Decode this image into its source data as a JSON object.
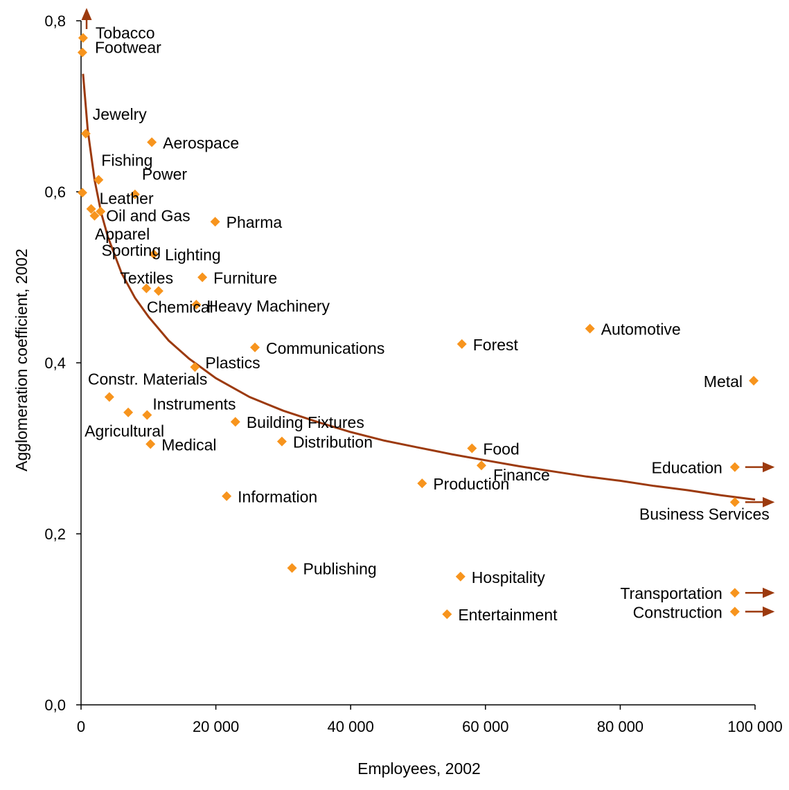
{
  "chart_data": {
    "type": "scatter",
    "xlabel": "Employees, 2002",
    "ylabel": "Agglomeration coefficient, 2002",
    "xlim": [
      0,
      100000
    ],
    "ylim": [
      0,
      0.8
    ],
    "x_ticks": [
      0,
      20000,
      40000,
      60000,
      80000,
      100000
    ],
    "x_tick_labels": [
      "0",
      "20 000",
      "40 000",
      "60 000",
      "80 000",
      "100 000"
    ],
    "y_ticks": [
      0,
      0.2,
      0.4,
      0.6,
      0.8
    ],
    "y_tick_labels": [
      "0,0",
      "0,2",
      "0,4",
      "0,6",
      "0,8"
    ],
    "grid": false,
    "legend": "none",
    "colors": {
      "points": "#F7941D",
      "trend": "#9C3A0E",
      "axis": "#000000"
    },
    "points": [
      {
        "label": "Tobacco",
        "x": 300,
        "y": 0.78
      },
      {
        "label": "Footwear",
        "x": 200,
        "y": 0.763
      },
      {
        "label": "Jewelry",
        "x": 700,
        "y": 0.668
      },
      {
        "label": "Aerospace",
        "x": 10500,
        "y": 0.658
      },
      {
        "label": "Fishing",
        "x": 2600,
        "y": 0.614
      },
      {
        "label": "Power",
        "x": 8000,
        "y": 0.597
      },
      {
        "label": "Leather",
        "x": 1500,
        "y": 0.58
      },
      {
        "label": "Oil and Gas",
        "x": 2900,
        "y": 0.577
      },
      {
        "label": "Apparel",
        "x": 200,
        "y": 0.599
      },
      {
        "label": "Sporting",
        "x": 2000,
        "y": 0.572
      },
      {
        "label": "Pharma",
        "x": 19900,
        "y": 0.565
      },
      {
        "label": "Lighting",
        "x": 10800,
        "y": 0.527
      },
      {
        "label": "Furniture",
        "x": 18000,
        "y": 0.5
      },
      {
        "label": "Textiles",
        "x": 9700,
        "y": 0.487
      },
      {
        "label": "Chemical",
        "x": 11500,
        "y": 0.484
      },
      {
        "label": "Heavy Machinery",
        "x": 17100,
        "y": 0.468
      },
      {
        "label": "Communications",
        "x": 25800,
        "y": 0.418
      },
      {
        "label": "Plastics",
        "x": 16900,
        "y": 0.395
      },
      {
        "label": "Constr. Materials",
        "x": 4200,
        "y": 0.36
      },
      {
        "label": "Instruments",
        "x": 9800,
        "y": 0.339
      },
      {
        "label": "Agricultural",
        "x": 7000,
        "y": 0.342
      },
      {
        "label": "Building Fixtures",
        "x": 22900,
        "y": 0.331
      },
      {
        "label": "Medical",
        "x": 10300,
        "y": 0.305
      },
      {
        "label": "Distribution",
        "x": 29800,
        "y": 0.308
      },
      {
        "label": "Information",
        "x": 21600,
        "y": 0.244
      },
      {
        "label": "Publishing",
        "x": 31300,
        "y": 0.16
      },
      {
        "label": "Forest",
        "x": 56500,
        "y": 0.422
      },
      {
        "label": "Automotive",
        "x": 75500,
        "y": 0.44
      },
      {
        "label": "Metal",
        "x": 99800,
        "y": 0.379
      },
      {
        "label": "Food",
        "x": 58000,
        "y": 0.3
      },
      {
        "label": "Finance",
        "x": 59400,
        "y": 0.28
      },
      {
        "label": "Production",
        "x": 50600,
        "y": 0.259
      },
      {
        "label": "Education",
        "x": 97000,
        "y": 0.278,
        "arrow": true
      },
      {
        "label": "Business Services",
        "x": 97000,
        "y": 0.237,
        "arrow": true
      },
      {
        "label": "Hospitality",
        "x": 56300,
        "y": 0.15
      },
      {
        "label": "Entertainment",
        "x": 54300,
        "y": 0.106
      },
      {
        "label": "Transportation",
        "x": 97000,
        "y": 0.131,
        "arrow": true
      },
      {
        "label": "Construction",
        "x": 97000,
        "y": 0.109,
        "arrow": true
      }
    ],
    "trendline": {
      "x": [
        300,
        1000,
        2000,
        3000,
        4000,
        6000,
        8000,
        10000,
        13000,
        16000,
        20000,
        25000,
        30000,
        35000,
        40000,
        45000,
        50000,
        55000,
        60000,
        65000,
        70000,
        75000,
        80000,
        85000,
        90000,
        95000,
        100000
      ],
      "y": [
        0.738,
        0.672,
        0.614,
        0.575,
        0.547,
        0.505,
        0.476,
        0.454,
        0.426,
        0.405,
        0.382,
        0.36,
        0.344,
        0.331,
        0.319,
        0.309,
        0.301,
        0.293,
        0.286,
        0.279,
        0.273,
        0.267,
        0.262,
        0.256,
        0.251,
        0.245,
        0.24
      ]
    }
  }
}
